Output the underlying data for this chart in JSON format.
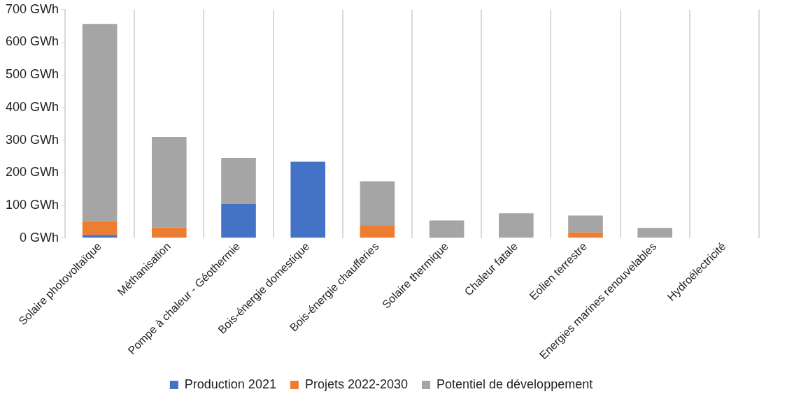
{
  "chart_data": {
    "type": "bar",
    "stacked": true,
    "grid": "x",
    "legend": "bottom",
    "categories": [
      "Solaire photovoltaïque",
      "Méthanisation",
      "Pompe à chaleur - Géothermie",
      "Bois-énergie domestique",
      "Bois-énergie chaufferies",
      "Solaire thermique",
      "Chaleur fatale",
      "Eolien terrestre",
      "Energies marines renouvelables",
      "Hydroélectricité"
    ],
    "series": [
      {
        "name": "Production 2021",
        "color": "#4472c4",
        "values": [
          10,
          3,
          105,
          234,
          3,
          3,
          0,
          0,
          0,
          0
        ]
      },
      {
        "name": "Projets 2022-2030",
        "color": "#ed7d31",
        "values": [
          42,
          30,
          0,
          0,
          35,
          0,
          0,
          17,
          0,
          0
        ]
      },
      {
        "name": "Potentiel de développement",
        "color": "#a5a5a5",
        "values": [
          604,
          277,
          141,
          0,
          136,
          51,
          76,
          52,
          31,
          0
        ]
      }
    ],
    "ylim": [
      0,
      700
    ],
    "yticks": [
      {
        "value": 0,
        "label": "0 GWh"
      },
      {
        "value": 100,
        "label": "100 GWh"
      },
      {
        "value": 200,
        "label": "200 GWh"
      },
      {
        "value": 300,
        "label": "300 GWh"
      },
      {
        "value": 400,
        "label": "400 GWh"
      },
      {
        "value": 500,
        "label": "500 GWh"
      },
      {
        "value": 600,
        "label": "600 GWh"
      },
      {
        "value": 700,
        "label": "700 GWh"
      }
    ]
  }
}
